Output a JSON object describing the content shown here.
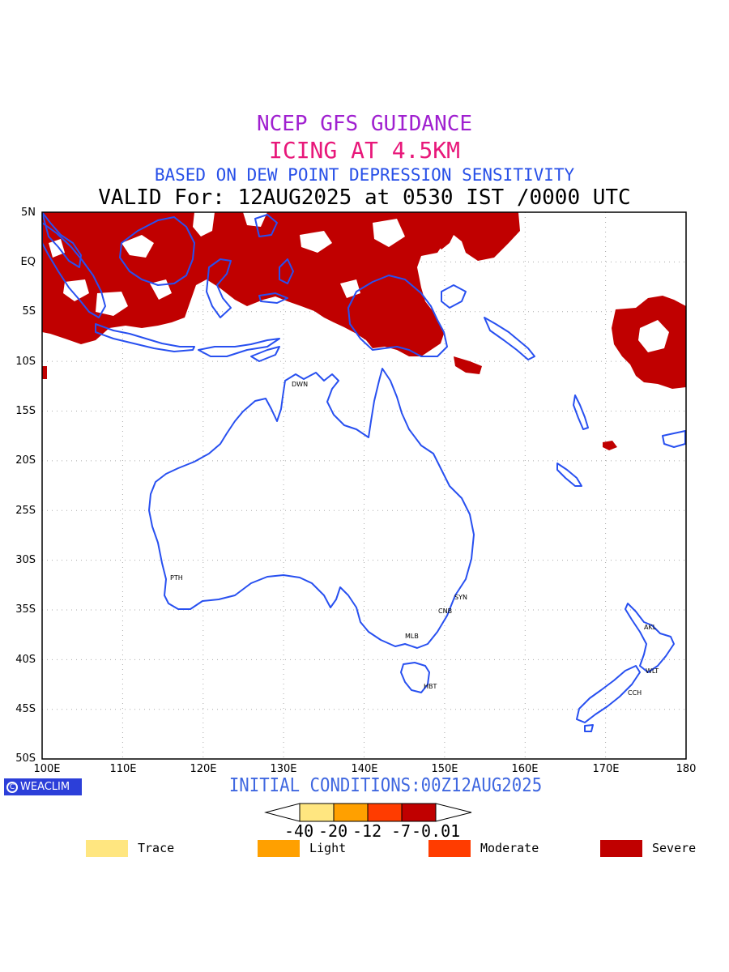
{
  "header": {
    "line1": "NCEP GFS GUIDANCE",
    "line2": "ICING AT 4.5KM",
    "line3": "BASED ON DEW POINT DEPRESSION SENSITIVITY",
    "line4": "VALID For: 12AUG2025 at 0530 IST /0000 UTC"
  },
  "map": {
    "lat_labels": [
      "5N",
      "EQ",
      "5S",
      "10S",
      "15S",
      "20S",
      "25S",
      "30S",
      "35S",
      "40S",
      "45S",
      "50S"
    ],
    "lon_labels": [
      "100E",
      "110E",
      "120E",
      "130E",
      "140E",
      "150E",
      "160E",
      "170E",
      "180"
    ],
    "cities": [
      "DWN",
      "PTH",
      "SYN",
      "CNB",
      "MLB",
      "HBT",
      "AKL",
      "WLT",
      "CCH"
    ],
    "colors": {
      "coast": "#2850f0",
      "severe": "#c00000",
      "grid": "#aaaaaa"
    }
  },
  "footer": {
    "logo_text": "WEACLIM",
    "initial_conditions": "INITIAL CONDITIONS:00Z12AUG2025"
  },
  "colorbar": {
    "tick_labels": [
      "-40",
      "-20",
      "-12",
      "-7",
      "-0.01"
    ],
    "colors": [
      "#ffe680",
      "#ffa000",
      "#ff3c00",
      "#c00000"
    ]
  },
  "legend": [
    {
      "label": "Trace",
      "color": "#ffe680"
    },
    {
      "label": "Light",
      "color": "#ffa000"
    },
    {
      "label": "Moderate",
      "color": "#ff3c00"
    },
    {
      "label": "Severe",
      "color": "#c00000"
    }
  ]
}
